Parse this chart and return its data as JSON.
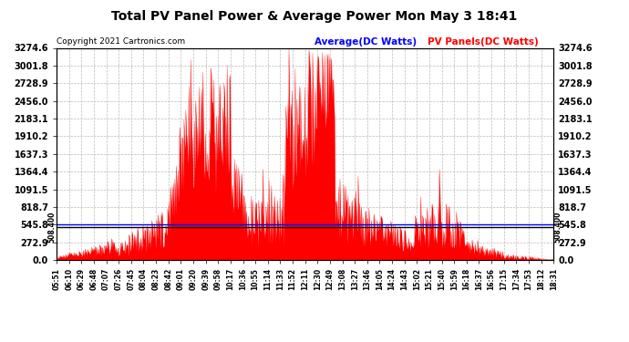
{
  "title": "Total PV Panel Power & Average Power Mon May 3 18:41",
  "copyright": "Copyright 2021 Cartronics.com",
  "legend_avg": "Average(DC Watts)",
  "legend_pv": "PV Panels(DC Watts)",
  "ymax": 3274.6,
  "ymin": 0.0,
  "yticks": [
    0.0,
    272.9,
    545.8,
    818.7,
    1091.5,
    1364.4,
    1637.3,
    1910.2,
    2183.1,
    2456.0,
    2728.9,
    3001.8,
    3274.6
  ],
  "hline_y": 508.4,
  "hline_label": "508.400",
  "avg_value": 545.8,
  "bg_color": "#ffffff",
  "plot_bg_color": "#ffffff",
  "grid_color": "#bbbbbb",
  "pv_fill_color": "#ff0000",
  "avg_line_color": "#0000ff",
  "title_color": "#000000",
  "copyright_color": "#000000",
  "xtick_labels": [
    "05:51",
    "06:10",
    "06:29",
    "06:48",
    "07:07",
    "07:26",
    "07:45",
    "08:04",
    "08:23",
    "08:42",
    "09:01",
    "09:20",
    "09:39",
    "09:58",
    "10:17",
    "10:36",
    "10:55",
    "11:14",
    "11:33",
    "11:52",
    "12:11",
    "12:30",
    "12:49",
    "13:08",
    "13:27",
    "13:46",
    "14:05",
    "14:24",
    "14:43",
    "15:02",
    "15:21",
    "15:40",
    "15:59",
    "16:18",
    "16:37",
    "16:56",
    "17:15",
    "17:34",
    "17:53",
    "18:12",
    "18:31"
  ],
  "num_points": 820
}
